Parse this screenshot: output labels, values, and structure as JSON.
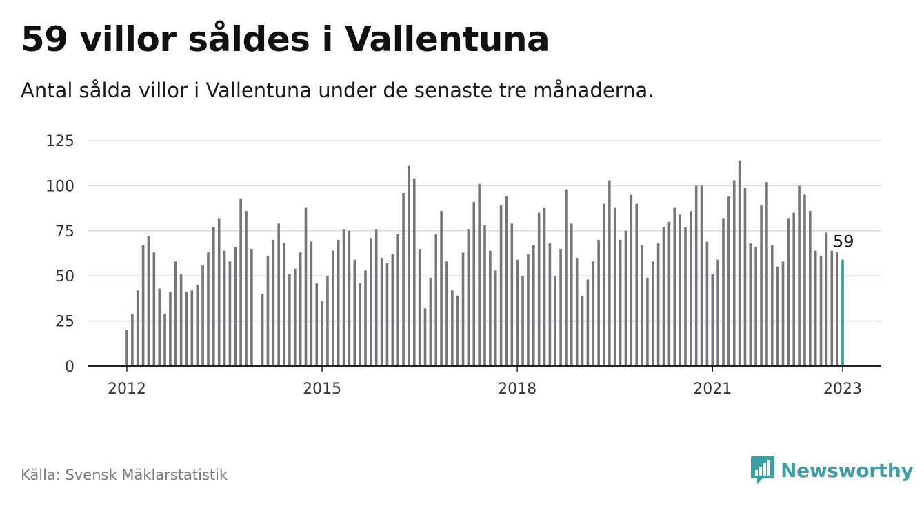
{
  "title": "59 villor såldes i Vallentuna",
  "subtitle": "Antal sålda villor i Vallentuna under de senaste tre månaderna.",
  "source": "Källa: Svensk Mäklarstatistik",
  "brand": {
    "name": "Newsworthy",
    "icon": "newsworthy-logo-icon",
    "color": "#3d9ea3"
  },
  "chart_data": {
    "type": "bar",
    "title": "59 villor såldes i Vallentuna",
    "subtitle": "Antal sålda villor i Vallentuna under de senaste tre månaderna.",
    "xlabel": "",
    "ylabel": "",
    "ylim": [
      0,
      125
    ],
    "yticks": [
      0,
      25,
      50,
      75,
      100,
      125
    ],
    "xticks": [
      "2012",
      "2015",
      "2018",
      "2021",
      "2023"
    ],
    "grid": true,
    "bar_color": "#75757a",
    "highlight_color": "#24a38e",
    "highlight_label": "59",
    "x": [
      "2012-01",
      "2012-02",
      "2012-03",
      "2012-04",
      "2012-05",
      "2012-06",
      "2012-07",
      "2012-08",
      "2012-09",
      "2012-10",
      "2012-11",
      "2012-12",
      "2013-01",
      "2013-02",
      "2013-03",
      "2013-04",
      "2013-05",
      "2013-06",
      "2013-07",
      "2013-08",
      "2013-09",
      "2013-10",
      "2013-11",
      "2013-12",
      "2014-01",
      "2014-02",
      "2014-03",
      "2014-04",
      "2014-05",
      "2014-06",
      "2014-07",
      "2014-08",
      "2014-09",
      "2014-10",
      "2014-11",
      "2014-12",
      "2015-01",
      "2015-02",
      "2015-03",
      "2015-04",
      "2015-05",
      "2015-06",
      "2015-07",
      "2015-08",
      "2015-09",
      "2015-10",
      "2015-11",
      "2015-12",
      "2016-01",
      "2016-02",
      "2016-03",
      "2016-04",
      "2016-05",
      "2016-06",
      "2016-07",
      "2016-08",
      "2016-09",
      "2016-10",
      "2016-11",
      "2016-12",
      "2017-01",
      "2017-02",
      "2017-03",
      "2017-04",
      "2017-05",
      "2017-06",
      "2017-07",
      "2017-08",
      "2017-09",
      "2017-10",
      "2017-11",
      "2017-12",
      "2018-01",
      "2018-02",
      "2018-03",
      "2018-04",
      "2018-05",
      "2018-06",
      "2018-07",
      "2018-08",
      "2018-09",
      "2018-10",
      "2018-11",
      "2018-12",
      "2019-01",
      "2019-02",
      "2019-03",
      "2019-04",
      "2019-05",
      "2019-06",
      "2019-07",
      "2019-08",
      "2019-09",
      "2019-10",
      "2019-11",
      "2019-12",
      "2020-01",
      "2020-02",
      "2020-03",
      "2020-04",
      "2020-05",
      "2020-06",
      "2020-07",
      "2020-08",
      "2020-09",
      "2020-10",
      "2020-11",
      "2020-12",
      "2021-01",
      "2021-02",
      "2021-03",
      "2021-04",
      "2021-05",
      "2021-06",
      "2021-07",
      "2021-08",
      "2021-09",
      "2021-10",
      "2021-11",
      "2021-12",
      "2022-01",
      "2022-02",
      "2022-03",
      "2022-04",
      "2022-05",
      "2022-06",
      "2022-07",
      "2022-08",
      "2022-09",
      "2022-10",
      "2022-11",
      "2022-12",
      "2023-01"
    ],
    "values": [
      20,
      29,
      42,
      67,
      72,
      63,
      43,
      29,
      41,
      58,
      51,
      41,
      42,
      45,
      56,
      63,
      77,
      82,
      64,
      58,
      66,
      93,
      86,
      65,
      null,
      40,
      61,
      70,
      79,
      68,
      51,
      54,
      63,
      88,
      69,
      46,
      36,
      50,
      64,
      70,
      76,
      75,
      59,
      46,
      53,
      71,
      76,
      60,
      57,
      62,
      73,
      96,
      111,
      104,
      65,
      32,
      49,
      73,
      86,
      58,
      42,
      39,
      63,
      76,
      91,
      101,
      78,
      64,
      53,
      89,
      94,
      79,
      59,
      50,
      62,
      67,
      85,
      88,
      68,
      50,
      65,
      98,
      79,
      60,
      39,
      48,
      58,
      70,
      90,
      103,
      88,
      70,
      75,
      95,
      90,
      67,
      49,
      58,
      68,
      77,
      80,
      88,
      84,
      77,
      86,
      100,
      100,
      69,
      51,
      59,
      82,
      94,
      103,
      114,
      99,
      68,
      66,
      89,
      102,
      67,
      55,
      58,
      82,
      85,
      100,
      95,
      86,
      64,
      61,
      74,
      64,
      63,
      59
    ]
  }
}
